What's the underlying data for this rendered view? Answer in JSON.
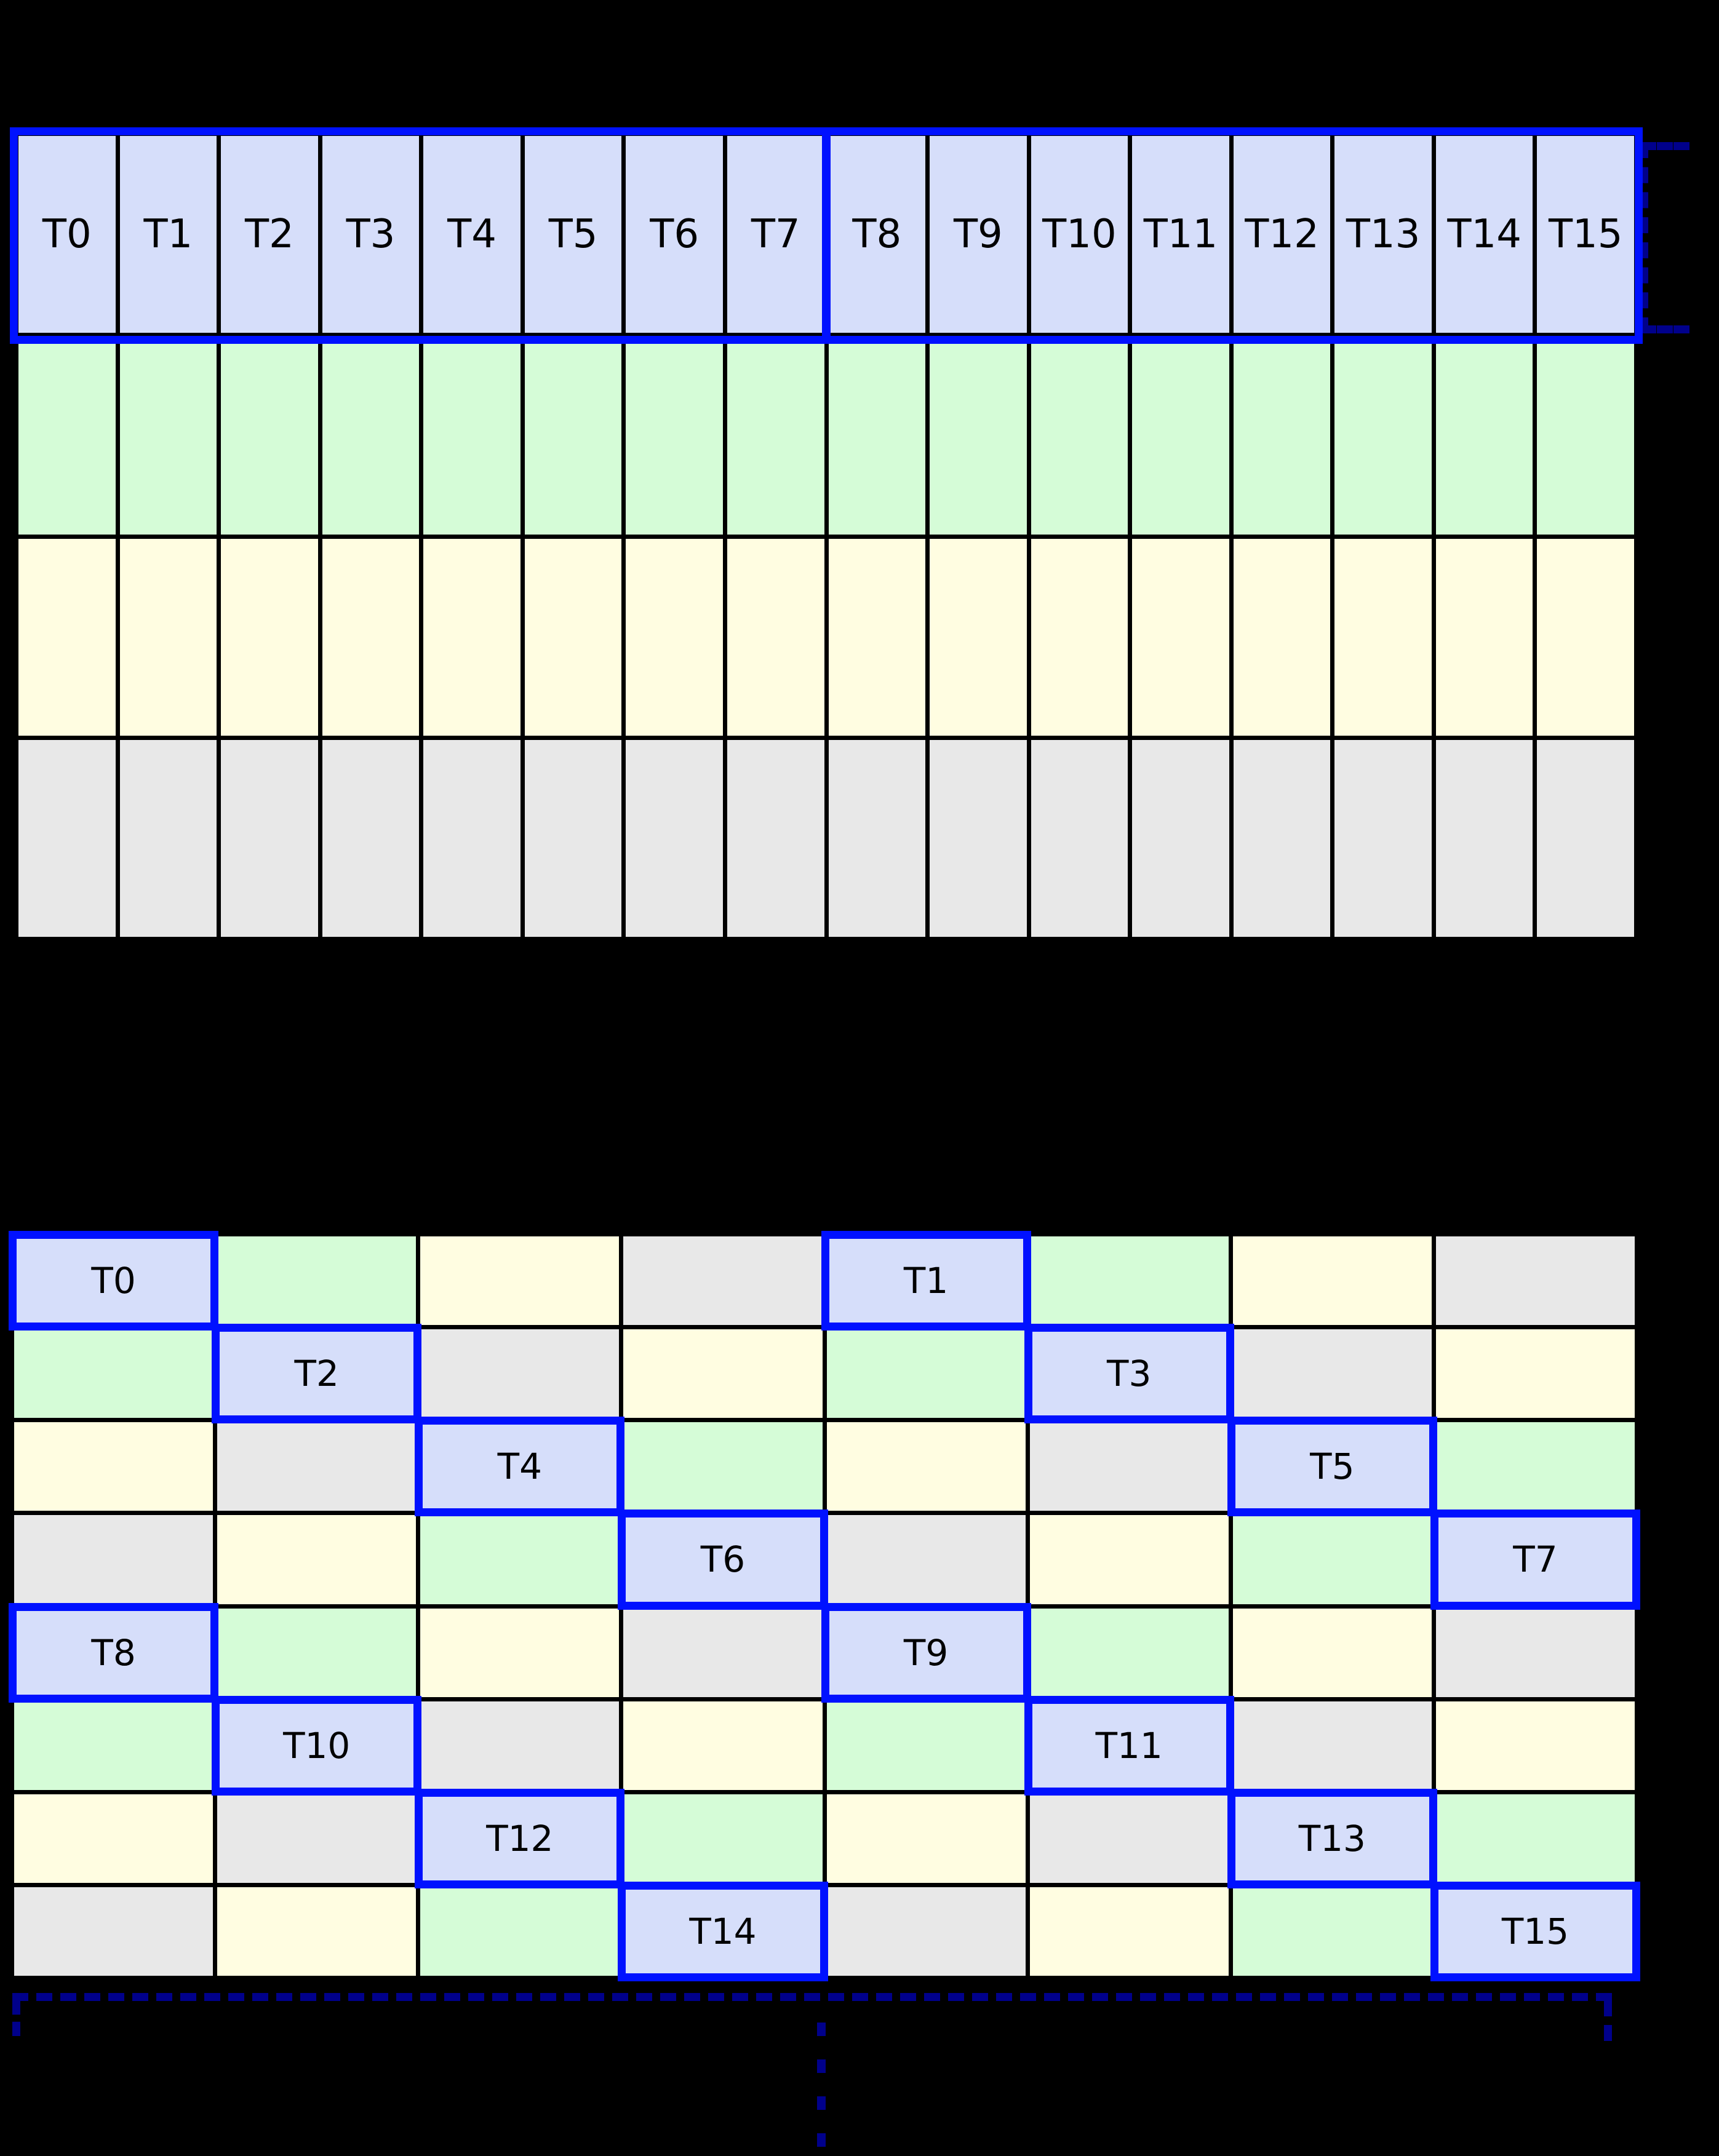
{
  "colors": {
    "background": "#000000",
    "grid_line": "#000000",
    "thread_cell_fill": "#d6defa",
    "green_cell_fill": "#d5fcd7",
    "yellow_cell_fill": "#fffde1",
    "gray_cell_fill": "#e8e8e8",
    "warp_outline_blue": "#0011ff",
    "bracket_navy": "#00008b",
    "label_text": "#000000"
  },
  "grid_top": {
    "columns": 16,
    "rows": 4,
    "thread_labels": [
      "T0",
      "T1",
      "T2",
      "T3",
      "T4",
      "T5",
      "T6",
      "T7",
      "T8",
      "T9",
      "T10",
      "T11",
      "T12",
      "T13",
      "T14",
      "T15"
    ],
    "warp_groups": [
      [
        "T0",
        "T7"
      ],
      [
        "T8",
        "T15"
      ]
    ],
    "lower_row_colors": [
      "g",
      "y",
      "e"
    ]
  },
  "grid_bottom": {
    "columns": 8,
    "rows": 8,
    "cells": [
      [
        "b:T0",
        "g",
        "y",
        "e",
        "b:T1",
        "g",
        "y",
        "e"
      ],
      [
        "g",
        "b:T2",
        "e",
        "y",
        "g",
        "b:T3",
        "e",
        "y"
      ],
      [
        "y",
        "e",
        "b:T4",
        "g",
        "y",
        "e",
        "b:T5",
        "g"
      ],
      [
        "e",
        "y",
        "g",
        "b:T6",
        "e",
        "y",
        "g",
        "b:T7"
      ],
      [
        "b:T8",
        "g",
        "y",
        "e",
        "b:T9",
        "g",
        "y",
        "e"
      ],
      [
        "g",
        "b:T10",
        "e",
        "y",
        "g",
        "b:T11",
        "e",
        "y"
      ],
      [
        "y",
        "e",
        "b:T12",
        "g",
        "y",
        "e",
        "b:T13",
        "g"
      ],
      [
        "e",
        "y",
        "g",
        "b:T14",
        "e",
        "y",
        "g",
        "b:T15"
      ]
    ]
  }
}
